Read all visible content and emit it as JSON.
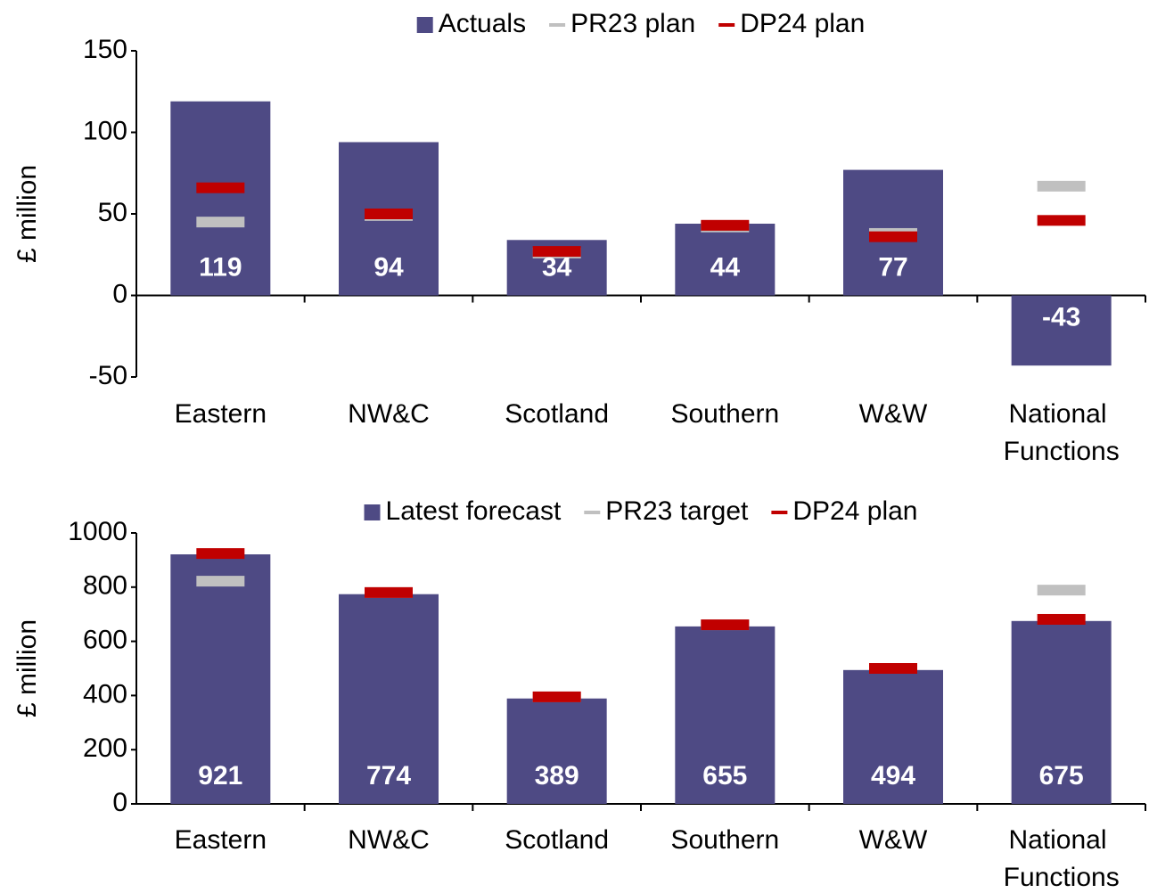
{
  "chart_data": [
    {
      "type": "bar",
      "ylabel": "£ million",
      "categories": [
        "Eastern",
        "NW&C",
        "Scotland",
        "Southern",
        "W&W",
        "National Functions"
      ],
      "series": [
        {
          "name": "Actuals",
          "color": "#4e4a84",
          "mark": "bar",
          "values": [
            119,
            94,
            34,
            44,
            77,
            -43
          ]
        },
        {
          "name": "PR23 plan",
          "color": "#c0c0c0",
          "mark": "dash",
          "values": [
            45,
            49,
            26,
            42,
            38,
            67
          ]
        },
        {
          "name": "DP24 plan",
          "color": "#c00000",
          "mark": "dash",
          "values": [
            66,
            50,
            27,
            43,
            36,
            46
          ]
        }
      ],
      "ylim": [
        -50,
        150
      ],
      "yticks": [
        -50,
        0,
        50,
        100,
        150
      ]
    },
    {
      "type": "bar",
      "ylabel": "£ million",
      "categories": [
        "Eastern",
        "NW&C",
        "Scotland",
        "Southern",
        "W&W",
        "National Functions"
      ],
      "series": [
        {
          "name": "Latest forecast",
          "color": "#4e4a84",
          "mark": "bar",
          "values": [
            921,
            774,
            389,
            655,
            494,
            675
          ]
        },
        {
          "name": "PR23 target",
          "color": "#c0c0c0",
          "mark": "dash",
          "values": [
            822,
            780,
            395,
            661,
            500,
            789
          ]
        },
        {
          "name": "DP24 plan",
          "color": "#c00000",
          "mark": "dash",
          "values": [
            924,
            780,
            395,
            661,
            500,
            681
          ]
        }
      ],
      "ylim": [
        0,
        1000
      ],
      "yticks": [
        0,
        200,
        400,
        600,
        800,
        1000
      ]
    }
  ]
}
